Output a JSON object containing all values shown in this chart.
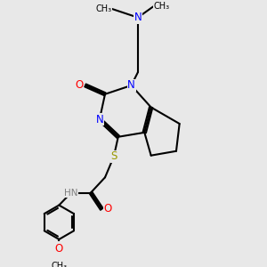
{
  "background_color": "#e8e8e8",
  "black": "#000000",
  "blue": "#0000FF",
  "red": "#FF0000",
  "yellow_s": "#999900",
  "gray": "#808080",
  "lw": 1.5,
  "xlim": [
    0,
    10
  ],
  "ylim": [
    0,
    11
  ]
}
